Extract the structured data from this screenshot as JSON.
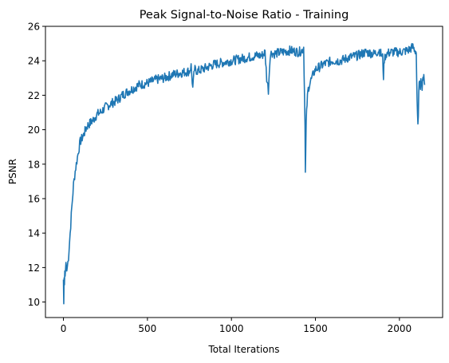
{
  "chart_data": {
    "type": "line",
    "title": "Peak Signal-to-Noise Ratio - Training",
    "xlabel": "Total Iterations",
    "ylabel": "PSNR",
    "xlim": [
      -107,
      2257
    ],
    "ylim": [
      9.1,
      26.0
    ],
    "xticks": [
      0,
      500,
      1000,
      1500,
      2000
    ],
    "yticks": [
      10,
      12,
      14,
      16,
      18,
      20,
      22,
      24,
      26
    ],
    "grid": false,
    "legend": "none",
    "series": [
      {
        "color": "#1f77b4",
        "x": [
          0,
          2,
          4,
          6,
          8,
          10,
          15,
          20,
          30,
          40,
          50,
          60,
          70,
          80,
          90,
          100,
          120,
          140,
          160,
          180,
          200,
          220,
          250,
          280,
          300,
          330,
          350,
          380,
          400,
          450,
          500,
          550,
          600,
          650,
          700,
          750,
          760,
          770,
          780,
          800,
          850,
          900,
          950,
          1000,
          1050,
          1100,
          1150,
          1180,
          1200,
          1210,
          1220,
          1230,
          1240,
          1250,
          1300,
          1350,
          1400,
          1420,
          1430,
          1435,
          1438,
          1440,
          1442,
          1445,
          1450,
          1455,
          1460,
          1470,
          1480,
          1490,
          1500,
          1550,
          1600,
          1650,
          1700,
          1750,
          1800,
          1850,
          1880,
          1900,
          1905,
          1910,
          1920,
          1950,
          2000,
          2050,
          2080,
          2100,
          2105,
          2110,
          2115,
          2120,
          2125,
          2130,
          2135,
          2140,
          2145,
          2150
        ],
        "y": [
          11.3,
          9.9,
          11.4,
          11.0,
          11.8,
          11.5,
          12.3,
          11.8,
          12.6,
          14.0,
          15.5,
          16.8,
          17.6,
          18.2,
          18.8,
          19.3,
          19.7,
          20.2,
          20.4,
          20.6,
          20.9,
          21.0,
          21.3,
          21.5,
          21.6,
          21.8,
          22.0,
          22.2,
          22.3,
          22.6,
          22.7,
          22.9,
          23.0,
          23.2,
          23.3,
          23.4,
          23.7,
          22.4,
          23.5,
          23.4,
          23.6,
          23.8,
          23.9,
          24.0,
          24.1,
          24.2,
          24.3,
          24.3,
          24.5,
          23.0,
          22.3,
          24.3,
          24.5,
          24.4,
          24.5,
          24.6,
          24.5,
          24.6,
          24.8,
          22.0,
          20.5,
          17.5,
          18.5,
          20.4,
          21.5,
          22.2,
          22.5,
          22.8,
          23.0,
          23.3,
          23.5,
          23.8,
          24.0,
          24.0,
          24.2,
          24.3,
          24.5,
          24.4,
          24.6,
          24.2,
          23.1,
          24.1,
          24.4,
          24.5,
          24.5,
          24.6,
          24.8,
          24.5,
          21.5,
          20.1,
          22.0,
          23.0,
          22.6,
          23.0,
          22.4,
          22.9,
          23.3,
          22.6
        ]
      }
    ]
  }
}
